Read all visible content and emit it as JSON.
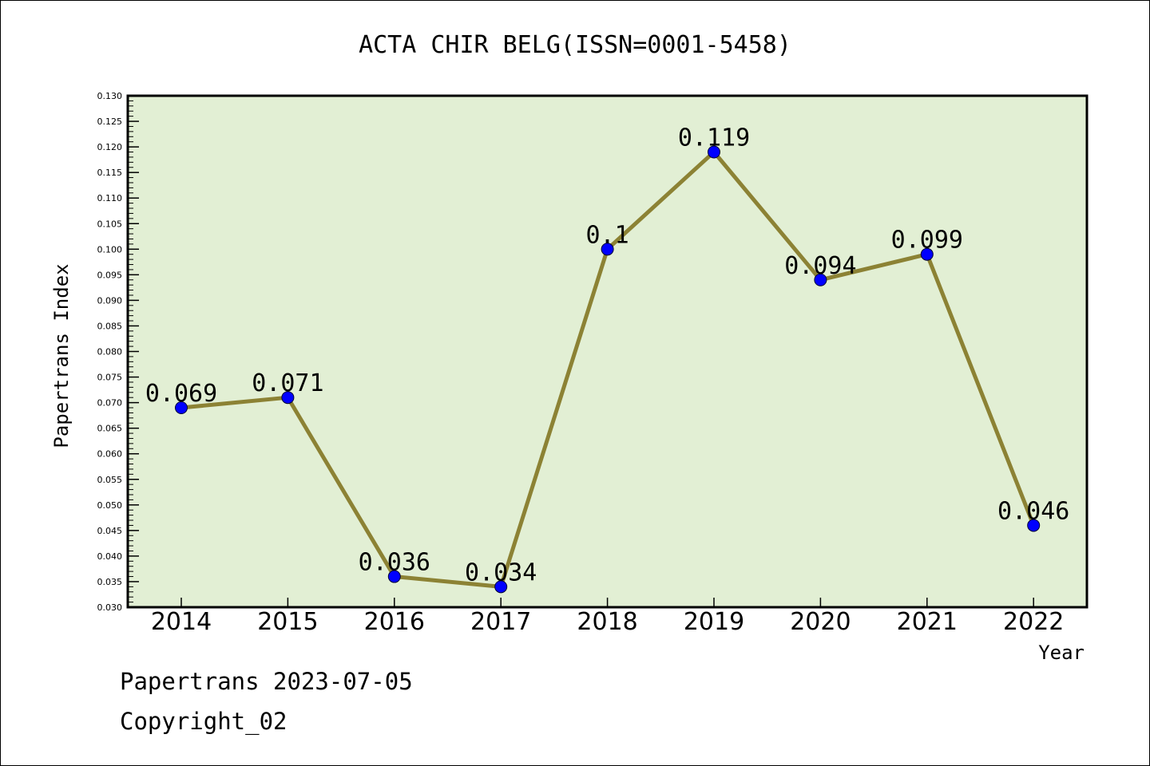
{
  "chart_data": {
    "type": "line",
    "title": "ACTA CHIR BELG(ISSN=0001-5458)",
    "xlabel": "Year",
    "ylabel": "Papertrans Index",
    "categories": [
      "2014",
      "2015",
      "2016",
      "2017",
      "2018",
      "2019",
      "2020",
      "2021",
      "2022"
    ],
    "series": [
      {
        "values": [
          0.069,
          0.071,
          0.036,
          0.034,
          0.1,
          0.119,
          0.094,
          0.099,
          0.046
        ],
        "data_labels": [
          "0.069",
          "0.071",
          "0.036",
          "0.034",
          "0.1",
          "0.119",
          "0.094",
          "0.099",
          "0.046"
        ]
      }
    ],
    "ylim": [
      0.03,
      0.13
    ],
    "yticks": [
      "0.030",
      "0.035",
      "0.040",
      "0.045",
      "0.050",
      "0.055",
      "0.060",
      "0.065",
      "0.070",
      "0.075",
      "0.080",
      "0.085",
      "0.090",
      "0.095",
      "0.100",
      "0.105",
      "0.110",
      "0.115",
      "0.120",
      "0.125",
      "0.130"
    ],
    "grid": false,
    "colors": {
      "line": "#8c8234",
      "marker": "#0000ff",
      "plot_background": "#e2efd4"
    }
  },
  "footer": {
    "line1": "Papertrans 2023-07-05",
    "line2": "Copyright_02"
  }
}
